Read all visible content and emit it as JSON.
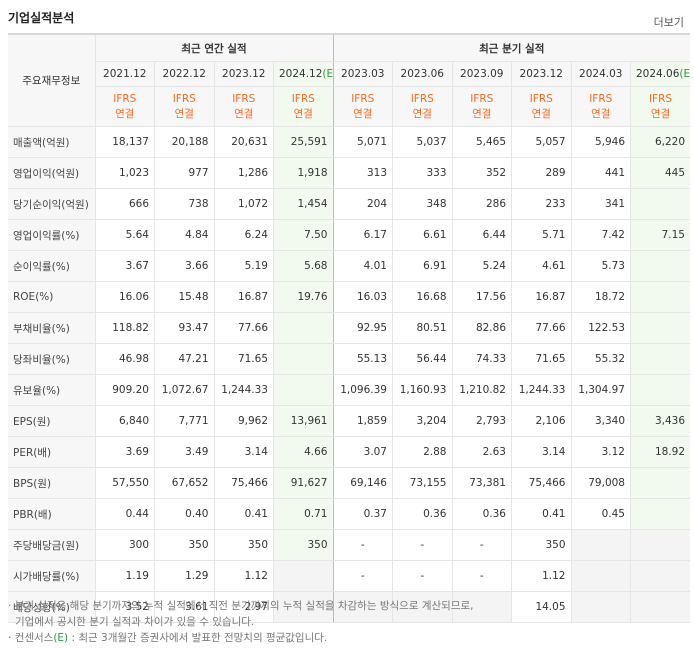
{
  "header": {
    "title": "기업실적분석",
    "more": "더보기"
  },
  "table": {
    "corner": "주요재무정보",
    "groups": [
      "최근 연간 실적",
      "최근 분기 실적"
    ],
    "periods": [
      [
        "2021.12"
      ],
      [
        "2022.12"
      ],
      [
        "2023.12"
      ],
      [
        "2024.12",
        "(E)"
      ],
      [
        "2023.03"
      ],
      [
        "2023.06"
      ],
      [
        "2023.09"
      ],
      [
        "2023.12"
      ],
      [
        "2024.03"
      ],
      [
        "2024.06",
        "(E)"
      ]
    ],
    "standards": [
      [
        "IFRS",
        "연결"
      ],
      [
        "IFRS",
        "연결"
      ],
      [
        "IFRS",
        "연결"
      ],
      [
        "IFRS",
        "연결"
      ],
      [
        "IFRS",
        "연결"
      ],
      [
        "IFRS",
        "연결"
      ],
      [
        "IFRS",
        "연결"
      ],
      [
        "IFRS",
        "연결"
      ],
      [
        "IFRS",
        "연결"
      ],
      [
        "IFRS",
        "연결"
      ]
    ],
    "sections": [
      [
        {
          "label": "매출액(억원)",
          "cells": [
            "18,137",
            "20,188",
            "20,631",
            "25,591",
            "5,071",
            "5,037",
            "5,465",
            "5,057",
            "5,946",
            "6,220"
          ]
        },
        {
          "label": "영업이익(억원)",
          "cells": [
            "1,023",
            "977",
            "1,286",
            "1,918",
            "313",
            "333",
            "352",
            "289",
            "441",
            "445"
          ]
        },
        {
          "label": "당기순이익(억원)",
          "cells": [
            "666",
            "738",
            "1,072",
            "1,454",
            "204",
            "348",
            "286",
            "233",
            "341",
            null
          ]
        }
      ],
      [
        {
          "label": "영업이익률(%)",
          "cells": [
            "5.64",
            "4.84",
            "6.24",
            "7.50",
            "6.17",
            "6.61",
            "6.44",
            "5.71",
            "7.42",
            "7.15"
          ]
        },
        {
          "label": "순이익률(%)",
          "cells": [
            "3.67",
            "3.66",
            "5.19",
            "5.68",
            "4.01",
            "6.91",
            "5.24",
            "4.61",
            "5.73",
            null
          ]
        },
        {
          "label": "ROE(%)",
          "cells": [
            "16.06",
            "15.48",
            "16.87",
            "19.76",
            "16.03",
            "16.68",
            "17.56",
            "16.87",
            "18.72",
            null
          ]
        }
      ],
      [
        {
          "label": "부채비율(%)",
          "cells": [
            "118.82",
            "93.47",
            "77.66",
            null,
            "92.95",
            "80.51",
            "82.86",
            "77.66",
            "122.53",
            null
          ]
        },
        {
          "label": "당좌비율(%)",
          "cells": [
            "46.98",
            "47.21",
            "71.65",
            null,
            "55.13",
            "56.44",
            "74.33",
            "71.65",
            "55.32",
            null
          ]
        },
        {
          "label": "유보율(%)",
          "cells": [
            "909.20",
            "1,072.67",
            "1,244.33",
            null,
            "1,096.39",
            "1,160.93",
            "1,210.82",
            "1,244.33",
            "1,304.97",
            null
          ]
        }
      ],
      [
        {
          "label": "EPS(원)",
          "cells": [
            "6,840",
            "7,771",
            "9,962",
            "13,961",
            "1,859",
            "3,204",
            "2,793",
            "2,106",
            "3,340",
            "3,436"
          ]
        },
        {
          "label": "PER(배)",
          "cells": [
            "3.69",
            "3.49",
            "3.14",
            "4.66",
            "3.07",
            "2.88",
            "2.63",
            "3.14",
            "3.12",
            "18.92"
          ]
        },
        {
          "label": "BPS(원)",
          "cells": [
            "57,550",
            "67,652",
            "75,466",
            "91,627",
            "69,146",
            "73,155",
            "73,381",
            "75,466",
            "79,008",
            null
          ]
        },
        {
          "label": "PBR(배)",
          "cells": [
            "0.44",
            "0.40",
            "0.41",
            "0.71",
            "0.37",
            "0.36",
            "0.36",
            "0.41",
            "0.45",
            null
          ]
        }
      ],
      [
        {
          "label": "주당배당금(원)",
          "cells": [
            "300",
            "350",
            "350",
            "350",
            "-",
            "-",
            "-",
            "350",
            null,
            null
          ]
        },
        {
          "label": "시가배당률(%)",
          "cells": [
            "1.19",
            "1.29",
            "1.12",
            null,
            "-",
            "-",
            "-",
            "1.12",
            null,
            null
          ]
        },
        {
          "label": "배당성향(%)",
          "cells": [
            "3.52",
            "3.61",
            "2.97",
            null,
            null,
            null,
            null,
            "14.05",
            null,
            null
          ]
        }
      ]
    ]
  },
  "notes": [
    {
      "lines": [
        "분기 실적은 해당 분기까지의 누적 실적에서 직전 분기까지의 누적 실적을 차감하는 방식으로 계산되므로,",
        "기업에서 공시한 분기 실적과 차이가 있을 수 있습니다."
      ]
    },
    {
      "lines": [
        "컨센서스",
        "(E)",
        " : 최근 3개월간 증권사에서 발표한 전망치의 평균값입니다."
      ]
    }
  ]
}
